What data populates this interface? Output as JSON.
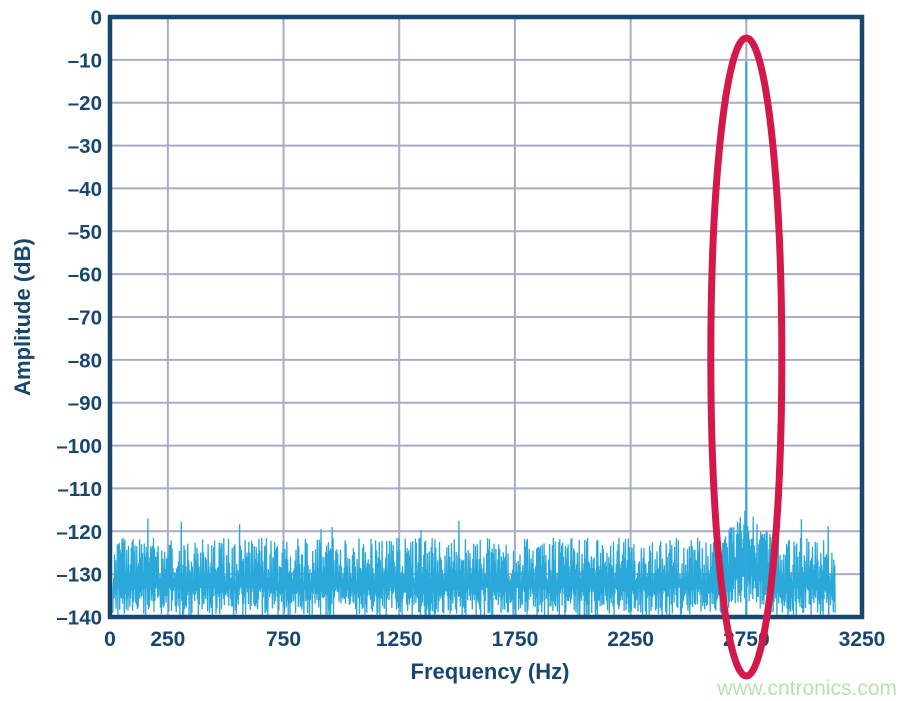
{
  "watermark": {
    "text": "www.cntronics.com",
    "color": "#b6dfb2"
  },
  "chart_data": {
    "type": "line",
    "title": "",
    "xlabel": "Frequency (Hz)",
    "ylabel": "Amplitude (dB)",
    "xlim": [
      0,
      3250
    ],
    "ylim": [
      -140,
      0
    ],
    "grid": true,
    "xticks": [
      {
        "value": 0,
        "label": "0"
      },
      {
        "value": 250,
        "label": "250"
      },
      {
        "value": 750,
        "label": "750"
      },
      {
        "value": 1250,
        "label": "1250"
      },
      {
        "value": 1750,
        "label": "1750"
      },
      {
        "value": 2250,
        "label": "2250"
      },
      {
        "value": 2750,
        "label": "2750"
      },
      {
        "value": 3250,
        "label": "3250"
      }
    ],
    "yticks": [
      {
        "value": 0,
        "label": "0"
      },
      {
        "value": -10,
        "label": "–10"
      },
      {
        "value": -20,
        "label": "–20"
      },
      {
        "value": -30,
        "label": "–30"
      },
      {
        "value": -40,
        "label": "–40"
      },
      {
        "value": -50,
        "label": "–50"
      },
      {
        "value": -60,
        "label": "–60"
      },
      {
        "value": -70,
        "label": "–70"
      },
      {
        "value": -80,
        "label": "–80"
      },
      {
        "value": -90,
        "label": "–90"
      },
      {
        "value": -100,
        "label": "–100"
      },
      {
        "value": -110,
        "label": "–110"
      },
      {
        "value": -120,
        "label": "–120"
      },
      {
        "value": -130,
        "label": "–130"
      },
      {
        "value": -140,
        "label": "–140"
      }
    ],
    "x_gridlines_hz": [
      250,
      750,
      1250,
      1750,
      2250,
      2750
    ],
    "y_gridlines_db": [
      -10,
      -20,
      -30,
      -40,
      -50,
      -60,
      -70,
      -80,
      -90,
      -100,
      -110,
      -120,
      -130
    ],
    "series": [
      {
        "name": "noise-floor",
        "kind": "noise",
        "freq_range_hz": [
          12,
          3134
        ],
        "step_hz": 2,
        "envelope_top_db": -121,
        "mean_db": -130,
        "min_db": -140,
        "occasional_spike_db": -117,
        "seed": 987654321
      },
      {
        "name": "signal-peak",
        "kind": "spike",
        "freq_hz": 2750,
        "amplitude_db": -10.4
      }
    ],
    "skirt": {
      "center_hz": 2750,
      "half_width_hz": 150,
      "rise_db": 7
    },
    "notable_points": [
      {
        "freq_hz": 165,
        "db": -117
      },
      {
        "freq_hz": 960,
        "db": -119
      },
      {
        "freq_hz": 2750,
        "db": -10.4
      },
      {
        "freq_hz": 2990,
        "db": -117.2
      },
      {
        "freq_hz": 3105,
        "db": -118.8
      }
    ],
    "annotation": {
      "shape": "ellipse",
      "center_freq_hz": 2750,
      "meaning": "highlight of signal peak",
      "color": "#d2194a"
    },
    "colors": {
      "axis": "#17466e",
      "grid": "#a8acc4",
      "signal": "#29a8d9",
      "spike": "#2fa9da",
      "annotation": "#d2194a"
    }
  }
}
